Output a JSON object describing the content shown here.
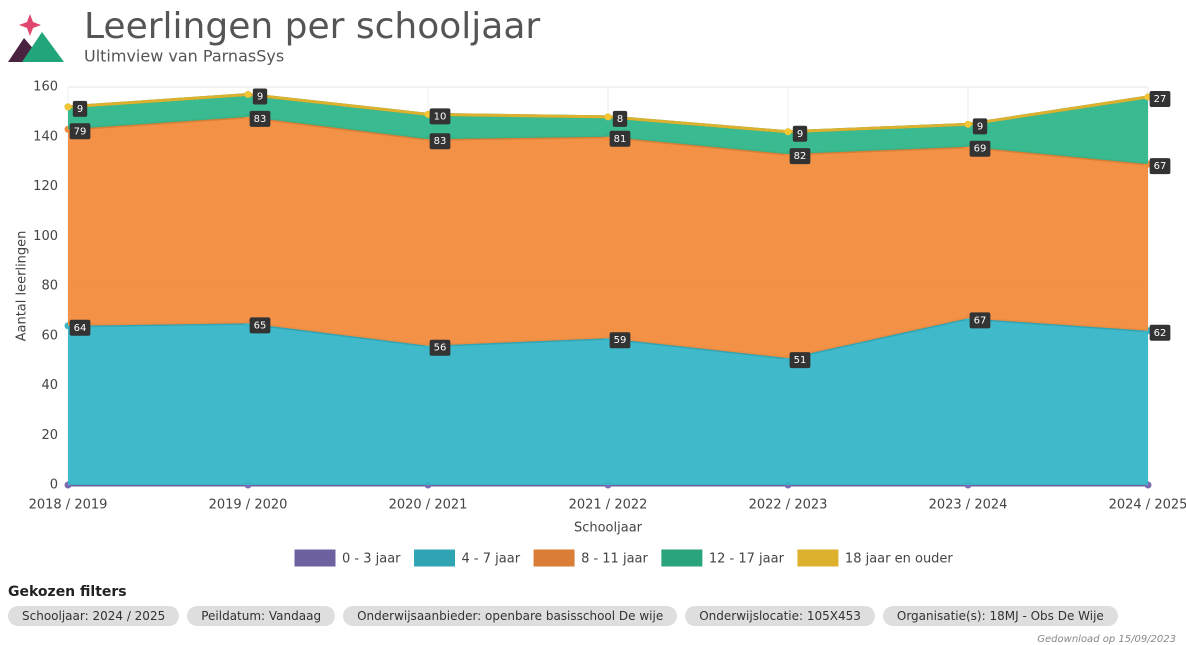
{
  "header": {
    "title": "Leerlingen per schooljaar",
    "subtitle": "Ultimview van ParnasSys"
  },
  "chart_data": {
    "type": "stacked-area",
    "x_label": "Schooljaar",
    "y_label": "Aantal leerlingen",
    "categories": [
      "2018 / 2019",
      "2019 / 2020",
      "2020 / 2021",
      "2021 / 2022",
      "2022 / 2023",
      "2023 / 2024",
      "2024 / 2025"
    ],
    "series": [
      {
        "name": "0 - 3 jaar",
        "color": "#7b6bb2",
        "values": [
          0,
          0,
          0,
          0,
          0,
          0,
          0
        ]
      },
      {
        "name": "4 - 7 jaar",
        "color": "#36b6c8",
        "values": [
          64,
          65,
          56,
          59,
          51,
          67,
          62
        ]
      },
      {
        "name": "8 - 11 jaar",
        "color": "#f28b3c",
        "values": [
          79,
          83,
          83,
          81,
          82,
          69,
          67
        ]
      },
      {
        "name": "12 - 17 jaar",
        "color": "#2fb68b",
        "values": [
          9,
          9,
          10,
          8,
          9,
          9,
          27
        ]
      },
      {
        "name": "18 jaar en ouder",
        "color": "#f6c533",
        "values": [
          0,
          0,
          0,
          0,
          0,
          0,
          0
        ]
      }
    ],
    "ylim": [
      0,
      160
    ],
    "yticks": [
      0,
      20,
      40,
      60,
      80,
      100,
      120,
      140,
      160
    ],
    "grid": true
  },
  "filters": {
    "title": "Gekozen filters",
    "items": [
      "Schooljaar: 2024 / 2025",
      "Peildatum: Vandaag",
      "Onderwijsaanbieder: openbare  basisschool De wije",
      "Onderwijslocatie: 105X453",
      "Organisatie(s): 18MJ - Obs De Wije"
    ]
  },
  "footer": "Gedownload op 15/09/2023"
}
